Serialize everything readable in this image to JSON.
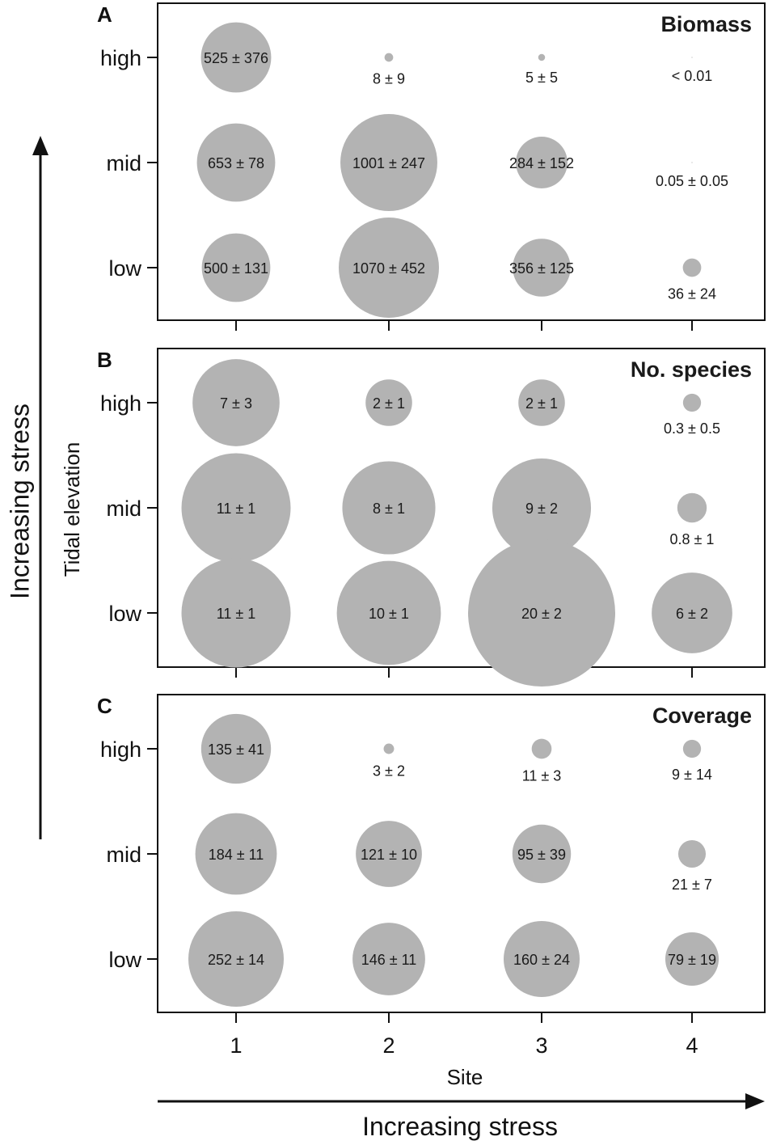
{
  "chart_data": {
    "type": "bubble",
    "x_categories": [
      "1",
      "2",
      "3",
      "4"
    ],
    "y_categories": [
      "high",
      "mid",
      "low"
    ],
    "xlabel": "Site",
    "ylabel": "Tidal elevation",
    "x_stress_label": "Increasing stress",
    "y_stress_label": "Increasing stress",
    "bubble_color": "#b3b3b3",
    "panels": [
      {
        "letter": "A",
        "title": "Biomass",
        "points": [
          {
            "site": "1",
            "elev": "high",
            "value": 525,
            "label": "525 ± 376"
          },
          {
            "site": "2",
            "elev": "high",
            "value": 8,
            "label": "8 ± 9"
          },
          {
            "site": "3",
            "elev": "high",
            "value": 5,
            "label": "5 ± 5"
          },
          {
            "site": "4",
            "elev": "high",
            "value": 0.01,
            "label": "< 0.01"
          },
          {
            "site": "1",
            "elev": "mid",
            "value": 653,
            "label": "653 ± 78"
          },
          {
            "site": "2",
            "elev": "mid",
            "value": 1001,
            "label": "1001 ± 247"
          },
          {
            "site": "3",
            "elev": "mid",
            "value": 284,
            "label": "284 ± 152"
          },
          {
            "site": "4",
            "elev": "mid",
            "value": 0.05,
            "label": "0.05 ± 0.05"
          },
          {
            "site": "1",
            "elev": "low",
            "value": 500,
            "label": "500 ± 131"
          },
          {
            "site": "2",
            "elev": "low",
            "value": 1070,
            "label": "1070 ± 452"
          },
          {
            "site": "3",
            "elev": "low",
            "value": 356,
            "label": "356 ± 125"
          },
          {
            "site": "4",
            "elev": "low",
            "value": 36,
            "label": "36 ± 24"
          }
        ]
      },
      {
        "letter": "B",
        "title": "No. species",
        "points": [
          {
            "site": "1",
            "elev": "high",
            "value": 7,
            "label": "7 ± 3"
          },
          {
            "site": "2",
            "elev": "high",
            "value": 2,
            "label": "2 ± 1"
          },
          {
            "site": "3",
            "elev": "high",
            "value": 2,
            "label": "2 ± 1"
          },
          {
            "site": "4",
            "elev": "high",
            "value": 0.3,
            "label": "0.3 ± 0.5"
          },
          {
            "site": "1",
            "elev": "mid",
            "value": 11,
            "label": "11 ± 1"
          },
          {
            "site": "2",
            "elev": "mid",
            "value": 8,
            "label": "8 ± 1"
          },
          {
            "site": "3",
            "elev": "mid",
            "value": 9,
            "label": "9 ± 2"
          },
          {
            "site": "4",
            "elev": "mid",
            "value": 0.8,
            "label": "0.8 ± 1"
          },
          {
            "site": "1",
            "elev": "low",
            "value": 11,
            "label": "11 ± 1"
          },
          {
            "site": "2",
            "elev": "low",
            "value": 10,
            "label": "10 ± 1"
          },
          {
            "site": "3",
            "elev": "low",
            "value": 20,
            "label": "20 ± 2"
          },
          {
            "site": "4",
            "elev": "low",
            "value": 6,
            "label": "6 ± 2"
          }
        ]
      },
      {
        "letter": "C",
        "title": "Coverage",
        "points": [
          {
            "site": "1",
            "elev": "high",
            "value": 135,
            "label": "135 ± 41"
          },
          {
            "site": "2",
            "elev": "high",
            "value": 3,
            "label": "3 ± 2"
          },
          {
            "site": "3",
            "elev": "high",
            "value": 11,
            "label": "11 ± 3"
          },
          {
            "site": "4",
            "elev": "high",
            "value": 9,
            "label": "9 ± 14"
          },
          {
            "site": "1",
            "elev": "mid",
            "value": 184,
            "label": "184 ± 11"
          },
          {
            "site": "2",
            "elev": "mid",
            "value": 121,
            "label": "121 ± 10"
          },
          {
            "site": "3",
            "elev": "mid",
            "value": 95,
            "label": "95 ± 39"
          },
          {
            "site": "4",
            "elev": "mid",
            "value": 21,
            "label": "21 ± 7"
          },
          {
            "site": "1",
            "elev": "low",
            "value": 252,
            "label": "252 ± 14"
          },
          {
            "site": "2",
            "elev": "low",
            "value": 146,
            "label": "146 ± 11"
          },
          {
            "site": "3",
            "elev": "low",
            "value": 160,
            "label": "160 ± 24"
          },
          {
            "site": "4",
            "elev": "low",
            "value": 79,
            "label": "79 ± 19"
          }
        ]
      }
    ]
  }
}
